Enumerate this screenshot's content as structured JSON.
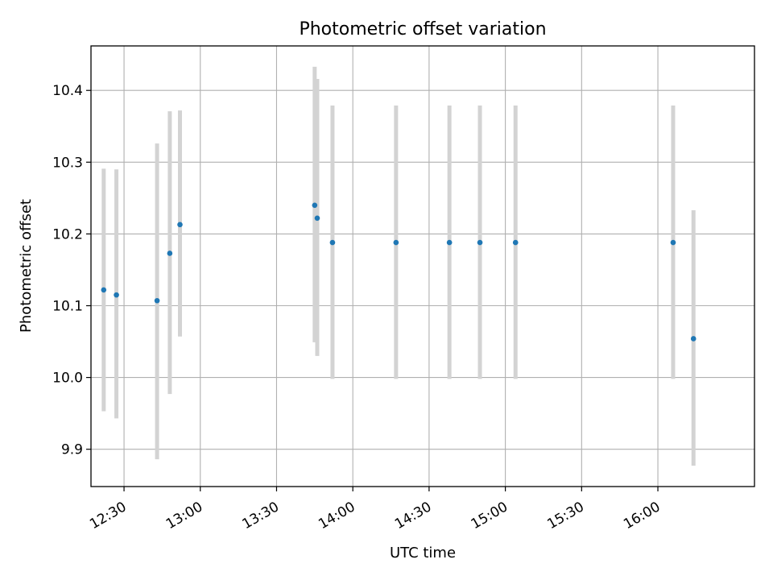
{
  "chart_data": {
    "type": "scatter",
    "title": "Photometric offset variation",
    "xlabel": "UTC time",
    "ylabel": "Photometric offset",
    "grid": true,
    "xlim": [
      "12:17",
      "16:38"
    ],
    "ylim": [
      9.848,
      10.462
    ],
    "x_ticks": [
      "12:30",
      "13:00",
      "13:30",
      "14:00",
      "14:30",
      "15:00",
      "15:30",
      "16:00"
    ],
    "y_ticks": [
      "9.9",
      "10.0",
      "10.1",
      "10.2",
      "10.3",
      "10.4"
    ],
    "colors": {
      "point": "#1f77b4",
      "errorbar": "#d3d3d3"
    },
    "points": [
      {
        "x": "12:22",
        "y": 10.122,
        "ymin": 9.953,
        "ymax": 10.291
      },
      {
        "x": "12:27",
        "y": 10.115,
        "ymin": 9.943,
        "ymax": 10.29
      },
      {
        "x": "12:43",
        "y": 10.107,
        "ymin": 9.886,
        "ymax": 10.326
      },
      {
        "x": "12:48",
        "y": 10.173,
        "ymin": 9.977,
        "ymax": 10.371
      },
      {
        "x": "12:52",
        "y": 10.213,
        "ymin": 10.057,
        "ymax": 10.372
      },
      {
        "x": "13:45",
        "y": 10.24,
        "ymin": 10.049,
        "ymax": 10.433
      },
      {
        "x": "13:46",
        "y": 10.222,
        "ymin": 10.03,
        "ymax": 10.416
      },
      {
        "x": "13:52",
        "y": 10.188,
        "ymin": 9.998,
        "ymax": 10.379
      },
      {
        "x": "14:17",
        "y": 10.188,
        "ymin": 9.998,
        "ymax": 10.379
      },
      {
        "x": "14:38",
        "y": 10.188,
        "ymin": 9.998,
        "ymax": 10.379
      },
      {
        "x": "14:50",
        "y": 10.188,
        "ymin": 9.998,
        "ymax": 10.379
      },
      {
        "x": "15:04",
        "y": 10.188,
        "ymin": 9.998,
        "ymax": 10.379
      },
      {
        "x": "16:06",
        "y": 10.188,
        "ymin": 9.998,
        "ymax": 10.379
      },
      {
        "x": "16:14",
        "y": 10.054,
        "ymin": 9.877,
        "ymax": 10.233
      }
    ]
  }
}
